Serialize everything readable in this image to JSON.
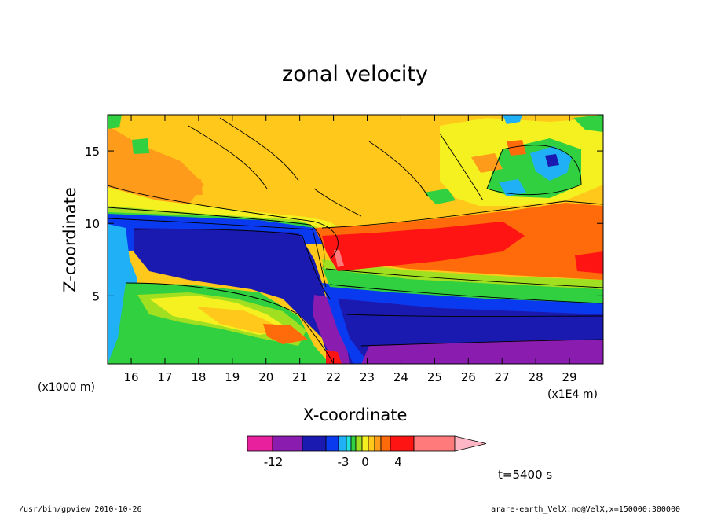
{
  "chart_data": {
    "type": "heatmap",
    "title": "zonal velocity",
    "xlabel": "X-coordinate",
    "ylabel": "Z-coordinate",
    "x_units": "(x1E4 m)",
    "y_units": "(x1000 m)",
    "xlim": [
      15.3,
      30.0
    ],
    "ylim": [
      0.3,
      17.5
    ],
    "x_ticks": [
      "16",
      "17",
      "18",
      "19",
      "20",
      "21",
      "22",
      "23",
      "24",
      "25",
      "26",
      "27",
      "28",
      "29"
    ],
    "y_ticks": [
      "5",
      "10",
      "15"
    ],
    "colorbar": {
      "colors": [
        "#e8209e",
        "#8a1cb0",
        "#1a1ab0",
        "#0a3af0",
        "#20b0f5",
        "#22e0e0",
        "#30d040",
        "#a0e020",
        "#f5f020",
        "#ffc81a",
        "#ff9b1a",
        "#ff6a0a",
        "#ff1414",
        "#ff7a7a",
        "#ffb6c4"
      ],
      "tick_labels": [
        "-12",
        "-3",
        "0",
        "4"
      ]
    },
    "annotation": "t=5400 s",
    "footer_left": "/usr/bin/gpview   2010-10-26",
    "footer_right": "arare-earth_VelX.nc@VelX,x=150000:300000"
  }
}
